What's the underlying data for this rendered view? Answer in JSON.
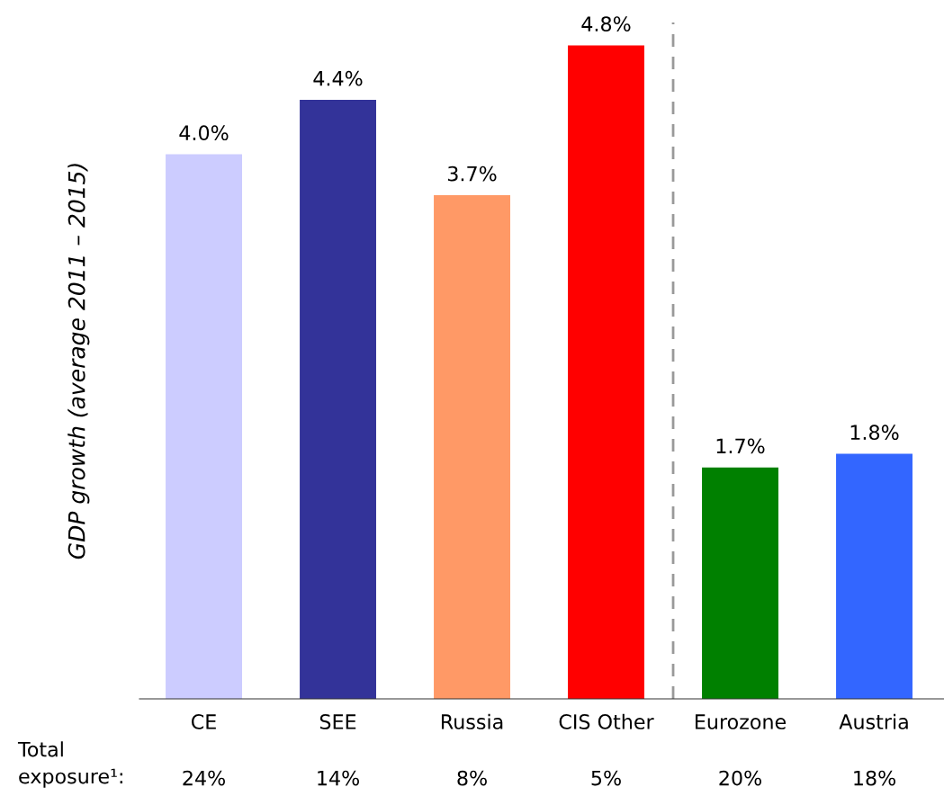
{
  "chart_data": {
    "type": "bar",
    "ylabel": "GDP growth (average 2011 – 2015)",
    "categories": [
      "CE",
      "SEE",
      "Russia",
      "CIS Other",
      "Eurozone",
      "Austria"
    ],
    "values": [
      4.0,
      4.4,
      3.7,
      4.8,
      1.7,
      1.8
    ],
    "colors": [
      "#ccccff",
      "#333399",
      "#ff9966",
      "#ff0000",
      "#008000",
      "#3366ff"
    ],
    "value_labels": [
      "4.0%",
      "4.4%",
      "3.7%",
      "4.8%",
      "1.7%",
      "1.8%"
    ],
    "annotations": [
      "Total\nexposure¹:",
      "24%",
      "14%",
      "8%",
      "5%",
      "20%",
      "18%"
    ],
    "grid": false
  }
}
